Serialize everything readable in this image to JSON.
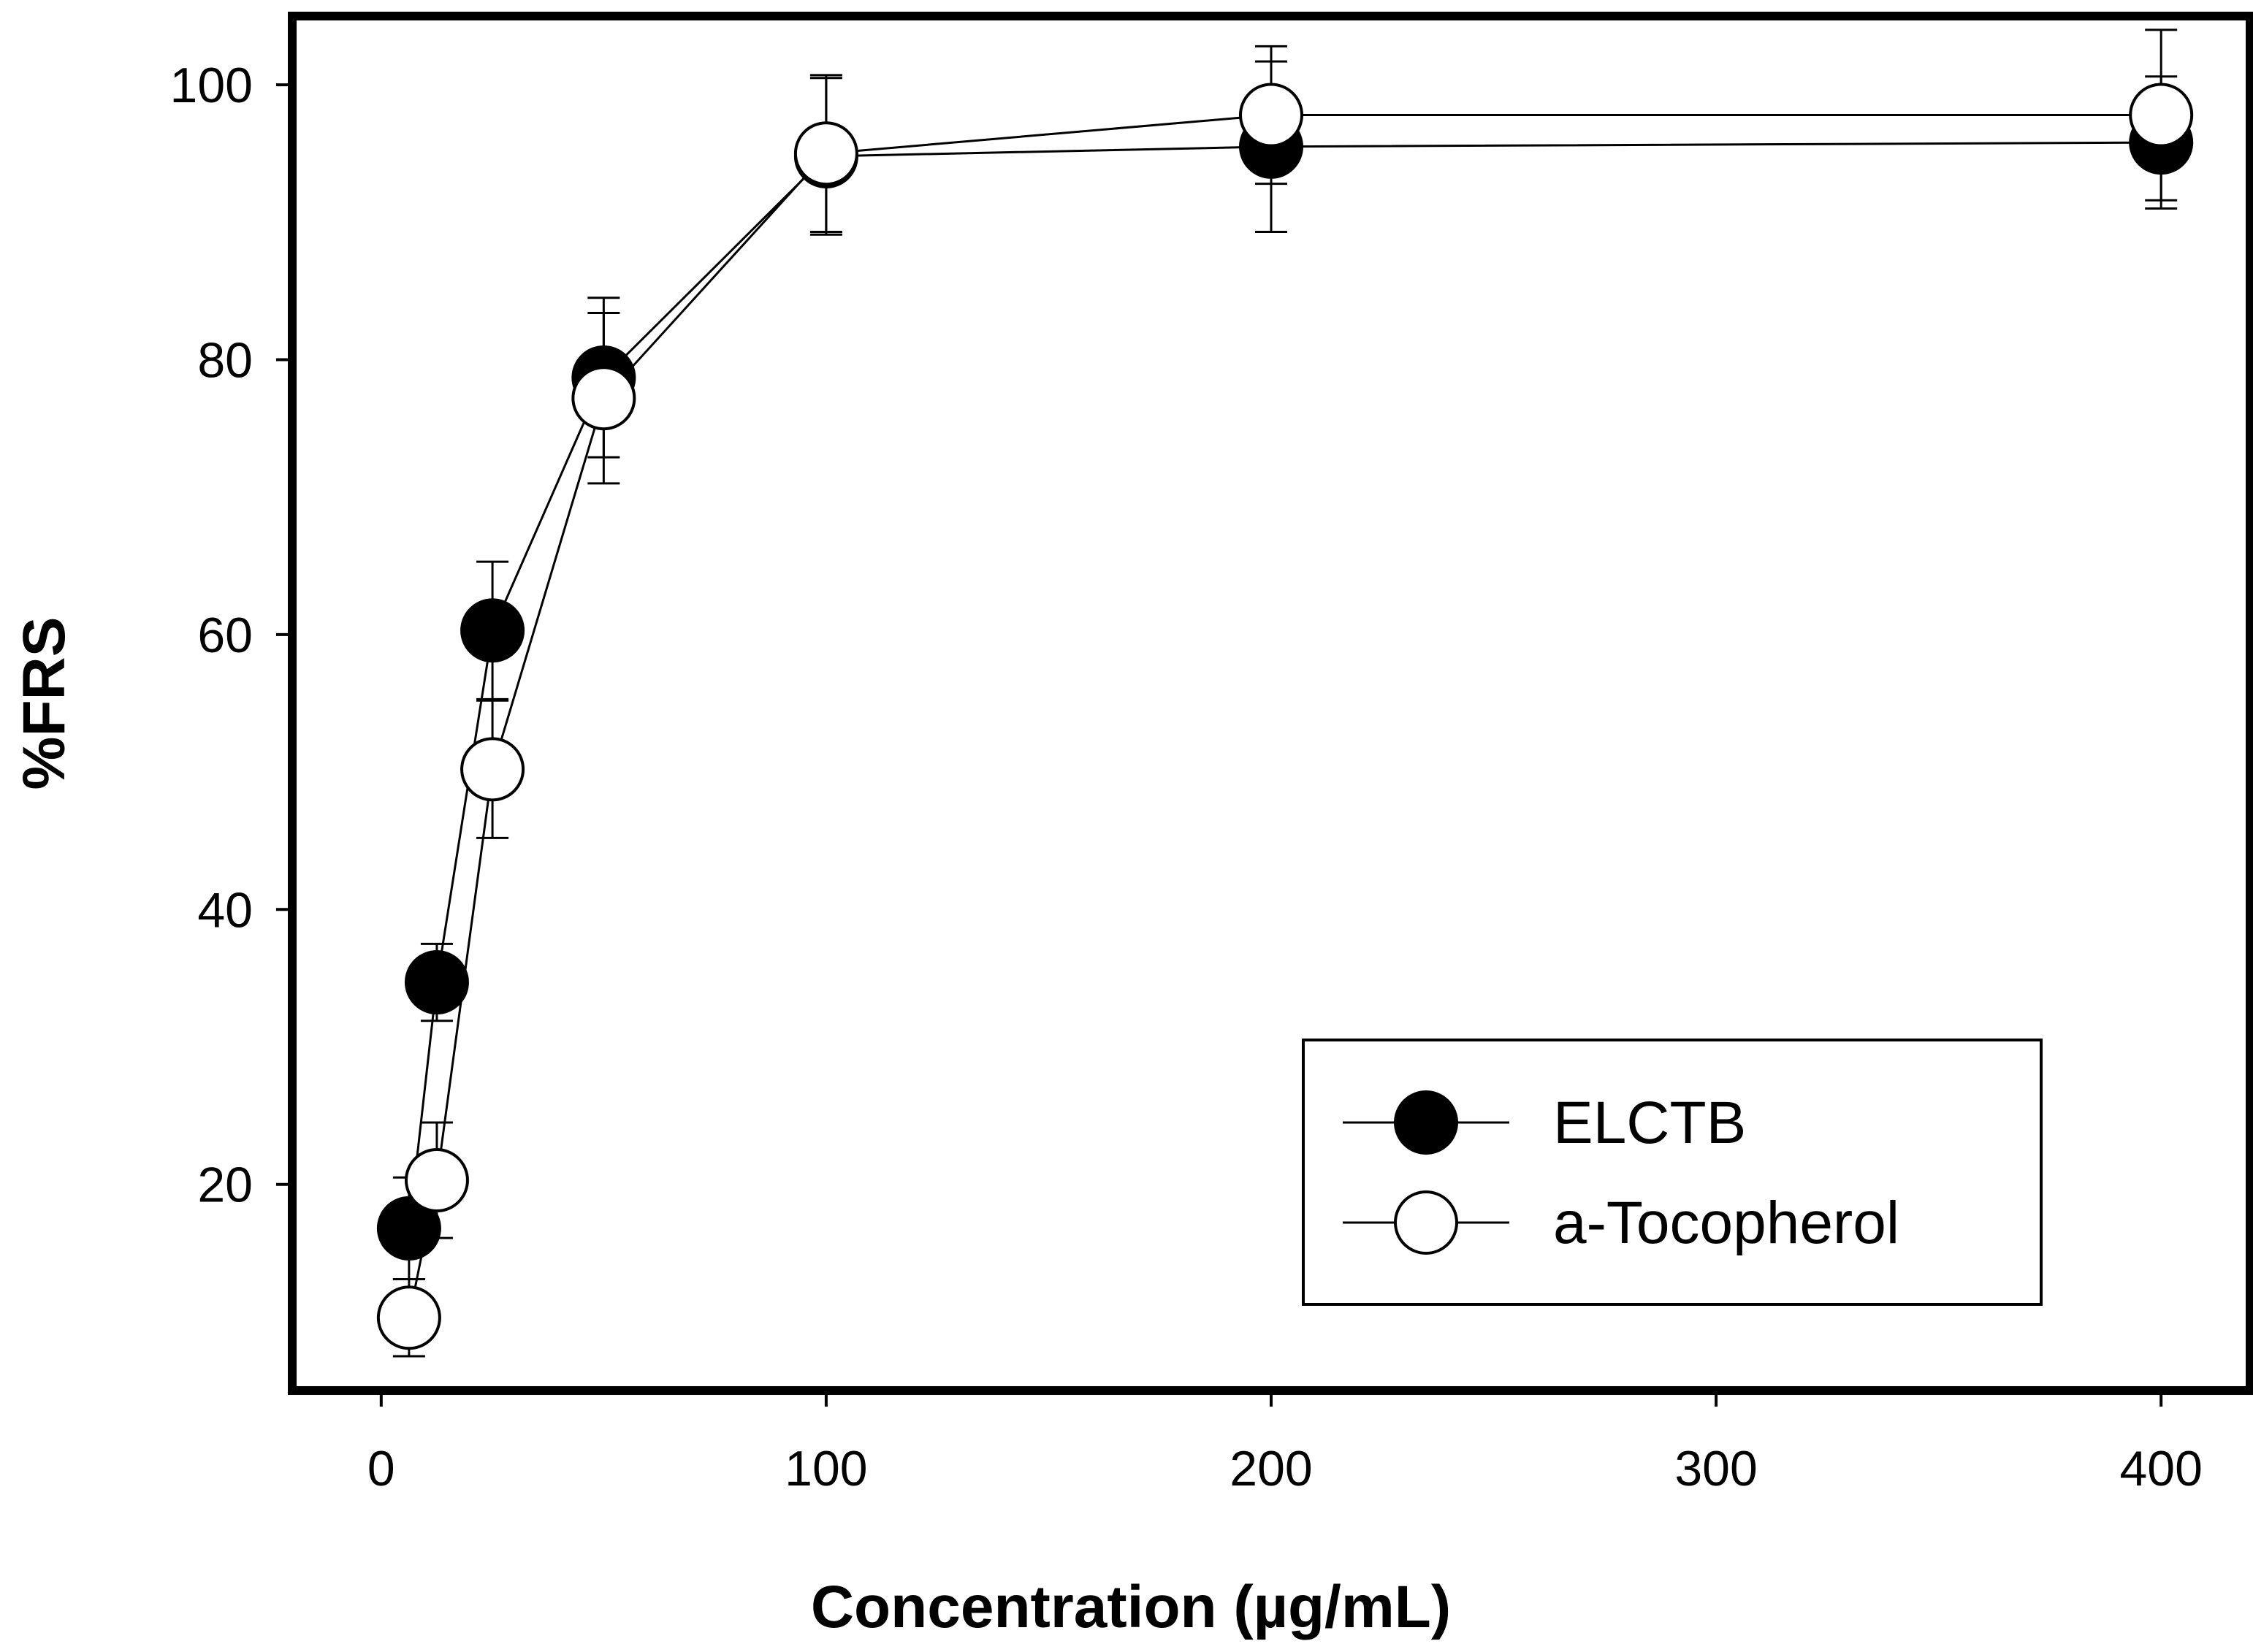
{
  "chart_data": {
    "type": "line",
    "title": "",
    "xlabel": "Concentration (µg/mL)",
    "ylabel": "%FRS",
    "xlim": [
      -20,
      420
    ],
    "ylim": [
      5,
      105
    ],
    "grid": false,
    "legend_position": "bottom-right",
    "x_ticks": [
      0,
      100,
      200,
      300,
      400
    ],
    "x_tick_labels": [
      "0",
      "100",
      "200",
      "300",
      "400"
    ],
    "y_ticks": [
      20,
      40,
      60,
      80,
      100
    ],
    "y_tick_labels": [
      "20",
      "40",
      "60",
      "80",
      "100"
    ],
    "x": [
      6.25,
      12.5,
      25,
      50,
      100,
      200,
      400
    ],
    "series": [
      {
        "name": "ELCTB",
        "marker": "filled-circle",
        "color": "#000000",
        "values": [
          16.8,
          34.7,
          60.3,
          78.7,
          94.8,
          95.5,
          95.8
        ],
        "errors": [
          3.7,
          2.8,
          5.0,
          5.8,
          5.7,
          6.2,
          4.8
        ]
      },
      {
        "name": "a-Tocopherol",
        "marker": "open-circle",
        "color": "#ffffff",
        "values": [
          10.3,
          20.3,
          50.2,
          77.2,
          95.0,
          97.8,
          97.8
        ],
        "errors": [
          2.8,
          4.2,
          5.0,
          6.2,
          5.7,
          5.0,
          6.2
        ]
      }
    ]
  }
}
